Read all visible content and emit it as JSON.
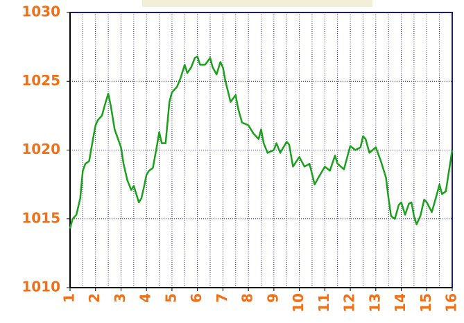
{
  "chart_data": {
    "type": "line",
    "x": [
      1,
      1.1,
      1.25,
      1.4,
      1.5,
      1.6,
      1.75,
      1.9,
      2,
      2.1,
      2.25,
      2.4,
      2.5,
      2.6,
      2.75,
      3,
      3.1,
      3.25,
      3.4,
      3.5,
      3.6,
      3.7,
      3.8,
      3.9,
      4,
      4.1,
      4.25,
      4.4,
      4.5,
      4.6,
      4.75,
      4.9,
      5,
      5.2,
      5.35,
      5.5,
      5.6,
      5.75,
      5.9,
      6,
      6.1,
      6.3,
      6.5,
      6.6,
      6.75,
      6.9,
      7,
      7.1,
      7.3,
      7.5,
      7.6,
      7.75,
      8,
      8.2,
      8.4,
      8.5,
      8.6,
      8.75,
      9,
      9.1,
      9.25,
      9.5,
      9.6,
      9.75,
      10,
      10.2,
      10.4,
      10.6,
      10.75,
      11,
      11.2,
      11.4,
      11.5,
      11.75,
      12,
      12.2,
      12.4,
      12.5,
      12.6,
      12.75,
      13,
      13.2,
      13.4,
      13.5,
      13.6,
      13.75,
      13.9,
      14,
      14.15,
      14.3,
      14.4,
      14.5,
      14.6,
      14.75,
      14.9,
      15,
      15.2,
      15.4,
      15.5,
      15.6,
      15.75,
      16
    ],
    "series": [
      {
        "color": "#1ca01c",
        "values": [
          1014.3,
          1015,
          1015.3,
          1016.5,
          1018.5,
          1019,
          1019.2,
          1020.8,
          1021.8,
          1022.2,
          1022.5,
          1023.5,
          1024.1,
          1023.2,
          1021.5,
          1020.2,
          1019,
          1017.8,
          1017.1,
          1017.4,
          1016.8,
          1016.2,
          1016.5,
          1017.3,
          1018.2,
          1018.5,
          1018.7,
          1020.2,
          1021.3,
          1020.5,
          1020.5,
          1023.5,
          1024.2,
          1024.6,
          1025.3,
          1026.2,
          1025.6,
          1026,
          1026.7,
          1026.8,
          1026.2,
          1026.2,
          1026.7,
          1026,
          1025.5,
          1026.4,
          1026,
          1025,
          1023.5,
          1024,
          1023,
          1022,
          1021.8,
          1021.2,
          1020.8,
          1021.5,
          1020.5,
          1019.8,
          1020,
          1020.5,
          1019.8,
          1020.6,
          1020.4,
          1018.8,
          1019.5,
          1018.8,
          1019,
          1017.5,
          1018,
          1018.8,
          1018.5,
          1019.6,
          1019,
          1018.6,
          1020.3,
          1020,
          1020.2,
          1021,
          1020.8,
          1019.8,
          1020.2,
          1019.2,
          1018,
          1016.5,
          1015.2,
          1015,
          1016,
          1016.2,
          1015.3,
          1016.1,
          1016.2,
          1015.2,
          1014.6,
          1015.2,
          1016.4,
          1016.2,
          1015.5,
          1016.8,
          1017.5,
          1016.8,
          1017,
          1020
        ]
      }
    ],
    "xlim": [
      1,
      16
    ],
    "xticks": [
      1,
      2,
      3,
      4,
      5,
      6,
      7,
      8,
      9,
      10,
      11,
      12,
      13,
      14,
      15,
      16
    ],
    "ylim": [
      1010,
      1030
    ],
    "yticks": [
      1010,
      1015,
      1020,
      1025,
      1030
    ],
    "grid": true
  }
}
